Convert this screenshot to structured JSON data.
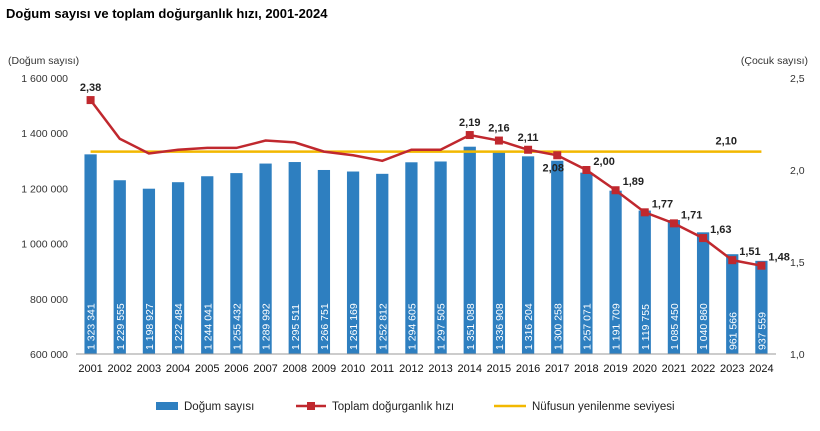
{
  "title": "Doğum sayısı ve toplam doğurganlık hızı, 2001-2024",
  "chart_data": {
    "type": "bar",
    "title": "Doğum sayısı ve toplam doğurganlık hızı, 2001-2024",
    "ylabel_left": "(Doğum sayısı)",
    "ylabel_right": "(Çocuk sayısı)",
    "ylim_left": [
      600000,
      1600000
    ],
    "ylim_right": [
      1.0,
      2.5
    ],
    "yticks_left": [
      "600 000",
      "800 000",
      "1 000 000",
      "1 200 000",
      "1 400 000",
      "1 600 000"
    ],
    "yticks_right": [
      "1,0",
      "1,5",
      "2,0",
      "2,5"
    ],
    "categories": [
      "2001",
      "2002",
      "2003",
      "2004",
      "2005",
      "2006",
      "2007",
      "2008",
      "2009",
      "2010",
      "2011",
      "2012",
      "2013",
      "2014",
      "2015",
      "2016",
      "2017",
      "2018",
      "2019",
      "2020",
      "2021",
      "2022",
      "2023",
      "2024"
    ],
    "series": [
      {
        "name": "Doğum sayısı",
        "type": "bar",
        "axis": "left",
        "color": "#2E7FC0",
        "values": [
          1323341,
          1229555,
          1198927,
          1222484,
          1244041,
          1255432,
          1289992,
          1295511,
          1266751,
          1261169,
          1252812,
          1294605,
          1297505,
          1351088,
          1336908,
          1316204,
          1300258,
          1257071,
          1191709,
          1119755,
          1085450,
          1040860,
          961566,
          937559
        ],
        "labels": [
          "1 323 341",
          "1 229 555",
          "1 198 927",
          "1 222 484",
          "1 244 041",
          "1 255 432",
          "1 289 992",
          "1 295 511",
          "1 266 751",
          "1 261 169",
          "1 252 812",
          "1 294 605",
          "1 297 505",
          "1 351 088",
          "1 336 908",
          "1 316 204",
          "1 300 258",
          "1 257 071",
          "1 191 709",
          "1 119 755",
          "1 085 450",
          "1 040 860",
          "961 566",
          "937 559"
        ]
      },
      {
        "name": "Toplam doğurganlık hızı",
        "type": "line",
        "axis": "right",
        "color": "#C0282E",
        "values": [
          2.38,
          2.17,
          2.09,
          2.11,
          2.12,
          2.12,
          2.16,
          2.15,
          2.1,
          2.08,
          2.05,
          2.11,
          2.11,
          2.19,
          2.16,
          2.11,
          2.08,
          2.0,
          1.89,
          1.77,
          1.71,
          1.63,
          1.51,
          1.48
        ],
        "labels": [
          "2,38",
          "",
          "",
          "",
          "",
          "",
          "",
          "",
          "",
          "",
          "",
          "",
          "",
          "2,19",
          "2,16",
          "2,11",
          "2,08",
          "2,00",
          "1,89",
          "1,77",
          "1,71",
          "1,63",
          "1,51",
          "1,48"
        ]
      },
      {
        "name": "Nüfusun yenilenme seviyesi",
        "type": "line",
        "axis": "right",
        "color": "#F2B800",
        "value": 2.1,
        "label": "2,10"
      }
    ],
    "legend": "bottom"
  }
}
